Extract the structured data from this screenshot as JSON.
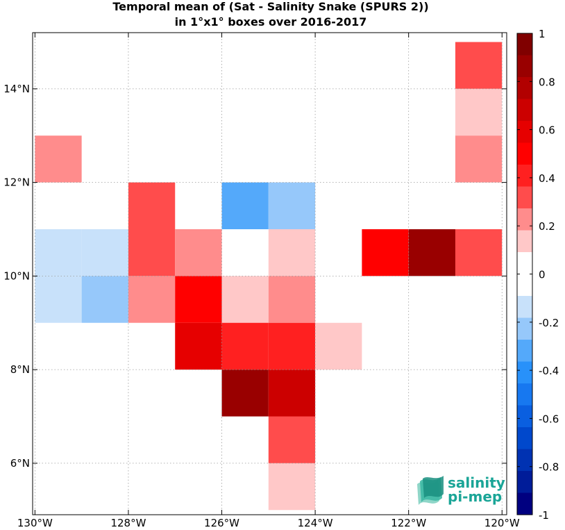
{
  "title_line1": "Temporal mean of (Sat - Salinity Snake (SPURS 2))",
  "title_line2": "in 1°x1° boxes over 2016-2017",
  "logo": {
    "line1": "salinity",
    "line2": "pi-mep",
    "color": "#1aa597"
  },
  "chart_data": {
    "type": "heatmap",
    "title": "Temporal mean of (Sat - Salinity Snake (SPURS 2)) in 1°x1° boxes over 2016-2017",
    "xlim": [
      -130.05,
      -119.9
    ],
    "ylim": [
      4.9,
      15.2
    ],
    "x_ticks": [
      {
        "value": -130,
        "label": "130°W"
      },
      {
        "value": -128,
        "label": "128°W"
      },
      {
        "value": -126,
        "label": "126°W"
      },
      {
        "value": -124,
        "label": "124°W"
      },
      {
        "value": -122,
        "label": "122°W"
      },
      {
        "value": -120,
        "label": "120°W"
      }
    ],
    "y_ticks": [
      {
        "value": 6,
        "label": "6°N"
      },
      {
        "value": 8,
        "label": "8°N"
      },
      {
        "value": 10,
        "label": "10°N"
      },
      {
        "value": 12,
        "label": "12°N"
      },
      {
        "value": 14,
        "label": "14°N"
      }
    ],
    "grid": true,
    "cells": [
      {
        "lon": -121,
        "lat": 14,
        "value": 0.3
      },
      {
        "lon": -121,
        "lat": 13,
        "value": 0.1
      },
      {
        "lon": -121,
        "lat": 12,
        "value": 0.2
      },
      {
        "lon": -130,
        "lat": 12,
        "value": 0.2
      },
      {
        "lon": -128,
        "lat": 11,
        "value": 0.3
      },
      {
        "lon": -126,
        "lat": 11,
        "value": -0.3
      },
      {
        "lon": -125,
        "lat": 11,
        "value": -0.2
      },
      {
        "lon": -130,
        "lat": 10,
        "value": -0.1
      },
      {
        "lon": -129,
        "lat": 10,
        "value": -0.1
      },
      {
        "lon": -128,
        "lat": 10,
        "value": 0.3
      },
      {
        "lon": -127,
        "lat": 10,
        "value": 0.2
      },
      {
        "lon": -125,
        "lat": 10,
        "value": 0.1
      },
      {
        "lon": -123,
        "lat": 10,
        "value": 0.5
      },
      {
        "lon": -122,
        "lat": 10,
        "value": 0.9
      },
      {
        "lon": -121,
        "lat": 10,
        "value": 0.3
      },
      {
        "lon": -130,
        "lat": 9,
        "value": -0.1
      },
      {
        "lon": -129,
        "lat": 9,
        "value": -0.2
      },
      {
        "lon": -128,
        "lat": 9,
        "value": 0.2
      },
      {
        "lon": -127,
        "lat": 9,
        "value": 0.5
      },
      {
        "lon": -126,
        "lat": 9,
        "value": 0.1
      },
      {
        "lon": -125,
        "lat": 9,
        "value": 0.2
      },
      {
        "lon": -127,
        "lat": 8,
        "value": 0.6
      },
      {
        "lon": -126,
        "lat": 8,
        "value": 0.4
      },
      {
        "lon": -125,
        "lat": 8,
        "value": 0.4
      },
      {
        "lon": -124,
        "lat": 8,
        "value": 0.1
      },
      {
        "lon": -126,
        "lat": 7,
        "value": 0.85
      },
      {
        "lon": -125,
        "lat": 7,
        "value": 0.65
      },
      {
        "lon": -125,
        "lat": 6,
        "value": 0.35
      },
      {
        "lon": -125,
        "lat": 5,
        "value": 0.1
      }
    ],
    "colorbar": {
      "range": [
        -1,
        1
      ],
      "tick_values": [
        1,
        0.8,
        0.6,
        0.4,
        0.2,
        0,
        -0.2,
        -0.4,
        -0.6,
        -0.8,
        -1
      ],
      "tick_labels": [
        "1",
        "0.8",
        "0.6",
        "0.4",
        "0.2",
        "0",
        "-0.2",
        "-0.4",
        "-0.6",
        "-0.8",
        "-1"
      ],
      "colors_top_to_bottom": [
        "#800000",
        "#990000",
        "#b20000",
        "#cc0000",
        "#e60000",
        "#ff0000",
        "#ff2020",
        "#ff4c4c",
        "#ff8c8c",
        "#ffc8c8",
        "#ffffff",
        "#ffffff",
        "#c8e1fa",
        "#96c8fa",
        "#54a9fa",
        "#2891fa",
        "#1778f0",
        "#0a5fe0",
        "#0048cc",
        "#0032b2",
        "#001c99",
        "#000080"
      ]
    }
  }
}
